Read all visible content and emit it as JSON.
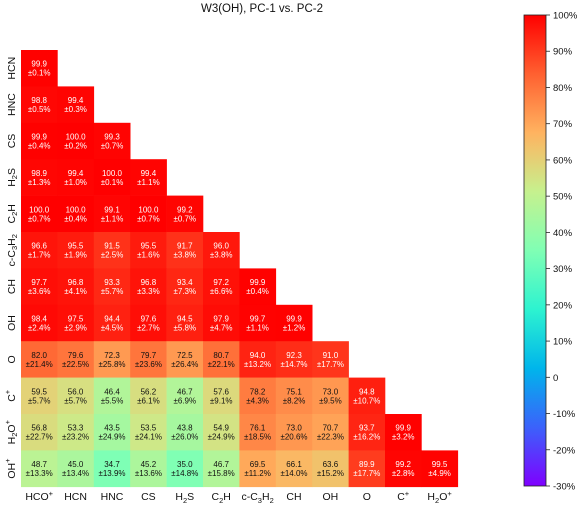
{
  "chart_data": {
    "type": "heatmap",
    "title": "W3(OH), PC-1 vs. PC-2",
    "row_labels": [
      "HCN",
      "HNC",
      "CS",
      "H2S",
      "C2H",
      "c-C3H2",
      "CH",
      "OH",
      "O",
      "C+",
      "H2O+",
      "OH+"
    ],
    "col_labels": [
      "HCO+",
      "HCN",
      "HNC",
      "CS",
      "H2S",
      "C2H",
      "c-C3H2",
      "CH",
      "OH",
      "O",
      "C+",
      "H2O+"
    ],
    "values": [
      [
        99.9
      ],
      [
        98.8,
        99.4
      ],
      [
        99.9,
        100.0,
        99.3
      ],
      [
        98.9,
        99.4,
        100.0,
        99.4
      ],
      [
        100.0,
        100.0,
        99.1,
        100.0,
        99.2
      ],
      [
        96.6,
        95.5,
        91.5,
        95.5,
        91.7,
        96.0
      ],
      [
        97.7,
        96.8,
        93.3,
        96.8,
        93.4,
        97.2,
        99.9
      ],
      [
        98.4,
        97.5,
        94.4,
        97.6,
        94.5,
        97.9,
        99.7,
        99.9
      ],
      [
        82.0,
        79.6,
        72.3,
        79.7,
        72.5,
        80.7,
        94.0,
        92.3,
        91.0
      ],
      [
        59.5,
        56.0,
        46.4,
        56.2,
        46.7,
        57.6,
        78.2,
        75.1,
        73.0,
        94.8
      ],
      [
        56.8,
        53.3,
        43.5,
        53.5,
        43.8,
        54.9,
        76.1,
        73.0,
        70.7,
        93.7,
        99.9
      ],
      [
        48.7,
        45.0,
        34.7,
        45.2,
        35.0,
        46.7,
        69.5,
        66.1,
        63.6,
        89.9,
        99.2,
        99.5
      ]
    ],
    "errors": [
      [
        "±0.1%"
      ],
      [
        "±0.5%",
        "±0.3%"
      ],
      [
        "±0.4%",
        "±0.2%",
        "±0.7%"
      ],
      [
        "±1.3%",
        "±1.0%",
        "±0.1%",
        "±1.1%"
      ],
      [
        "±0.7%",
        "±0.4%",
        "±1.1%",
        "±0.7%",
        "±0.7%"
      ],
      [
        "±1.7%",
        "±1.9%",
        "±2.5%",
        "±1.6%",
        "±3.8%",
        "±3.8%"
      ],
      [
        "±3.6%",
        "±4.1%",
        "±5.7%",
        "±3.3%",
        "±7.3%",
        "±6.6%",
        "±0.4%"
      ],
      [
        "±2.4%",
        "±2.9%",
        "±4.5%",
        "±2.7%",
        "±5.8%",
        "±4.7%",
        "±1.1%",
        "±1.2%"
      ],
      [
        "±21.4%",
        "±22.5%",
        "±25.8%",
        "±23.6%",
        "±26.4%",
        "±22.1%",
        "±13.2%",
        "±14.7%",
        "±17.7%"
      ],
      [
        "±5.7%",
        "±5.7%",
        "±5.5%",
        "±6.1%",
        "±6.9%",
        "±9.1%",
        "±4.3%",
        "±8.2%",
        "±9.5%",
        "±10.7%"
      ],
      [
        "±22.7%",
        "±23.2%",
        "±24.9%",
        "±24.1%",
        "±26.0%",
        "±24.9%",
        "±18.5%",
        "±20.6%",
        "±22.3%",
        "±16.2%",
        "±3.2%"
      ],
      [
        "±13.3%",
        "±13.4%",
        "±13.9%",
        "±13.6%",
        "±14.8%",
        "±15.8%",
        "±11.2%",
        "±14.0%",
        "±15.2%",
        "±17.7%",
        "±2.8%",
        "±4.9%"
      ]
    ],
    "colorbar": {
      "min": -30,
      "max": 100,
      "ticks": [
        -30,
        -20,
        -10,
        0,
        10,
        20,
        30,
        40,
        50,
        60,
        70,
        80,
        90,
        100
      ],
      "tick_labels": [
        "-30%",
        "-20%",
        "-10%",
        "0",
        "10%",
        "20%",
        "30%",
        "40%",
        "50%",
        "60%",
        "70%",
        "80%",
        "90%",
        "100%"
      ],
      "colormap": "rainbow"
    }
  }
}
